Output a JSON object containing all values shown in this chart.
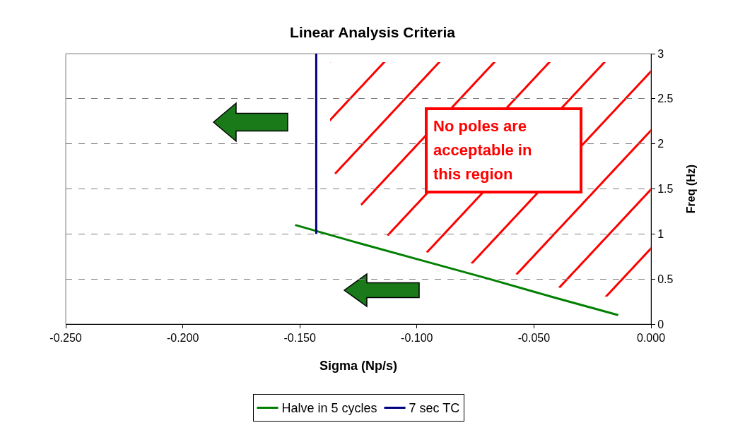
{
  "chart_data": {
    "type": "line",
    "title": "Linear Analysis Criteria",
    "xlabel": "Sigma (Np/s)",
    "ylabel": "Freq (Hz)",
    "series": [
      {
        "name": "Halve in 5 cycles",
        "color": "#008000",
        "x": [
          -0.152,
          -0.125,
          -0.097,
          -0.069,
          -0.042,
          -0.014
        ],
        "values": [
          1.1,
          0.9,
          0.7,
          0.5,
          0.3,
          0.1
        ]
      },
      {
        "name": "7 sec TC",
        "color": "#000080",
        "x": [
          -0.143,
          -0.143
        ],
        "values": [
          1,
          3
        ]
      }
    ],
    "xlim": [
      -0.25,
      0
    ],
    "xticks": [
      {
        "value": -0.25,
        "label": "-0.250"
      },
      {
        "value": -0.2,
        "label": "-0.200"
      },
      {
        "value": -0.15,
        "label": "-0.150"
      },
      {
        "value": -0.1,
        "label": "-0.100"
      },
      {
        "value": -0.05,
        "label": "-0.050"
      },
      {
        "value": 0,
        "label": "0.000"
      }
    ],
    "ylim": [
      0,
      3
    ],
    "yticks": [
      0,
      0.5,
      1,
      1.5,
      2,
      2.5,
      3
    ],
    "annotations": [
      "No poles are acceptable in this region"
    ],
    "grid": "y",
    "legend": "bottom",
    "marker": "none",
    "line_style": "solid"
  }
}
